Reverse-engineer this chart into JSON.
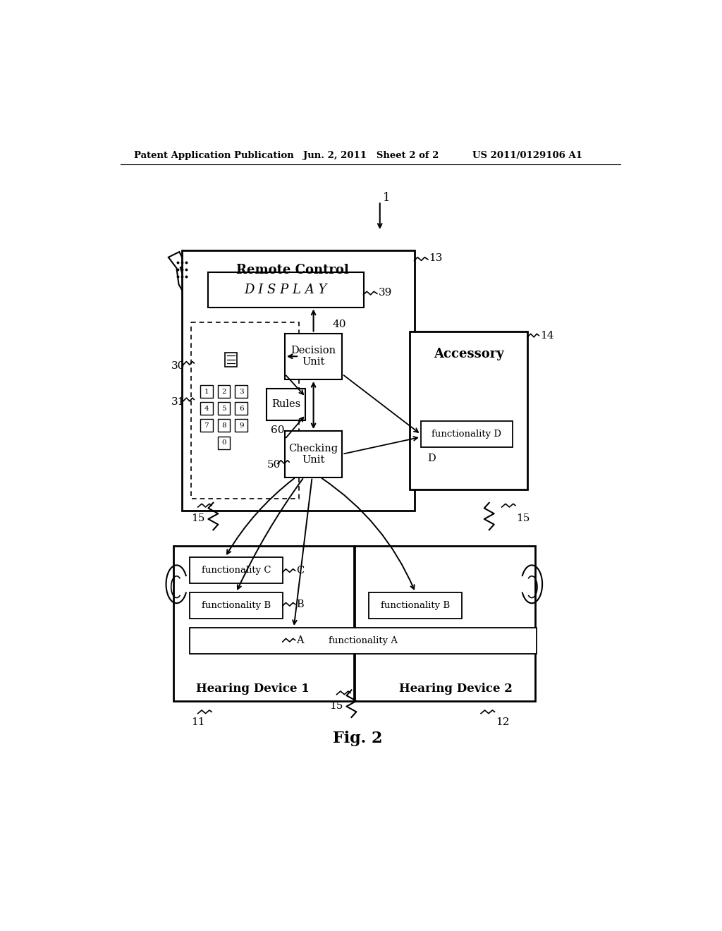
{
  "bg_color": "#ffffff",
  "header_left": "Patent Application Publication",
  "header_mid": "Jun. 2, 2011   Sheet 2 of 2",
  "header_right": "US 2011/0129106 A1",
  "fig_label": "Fig. 2"
}
